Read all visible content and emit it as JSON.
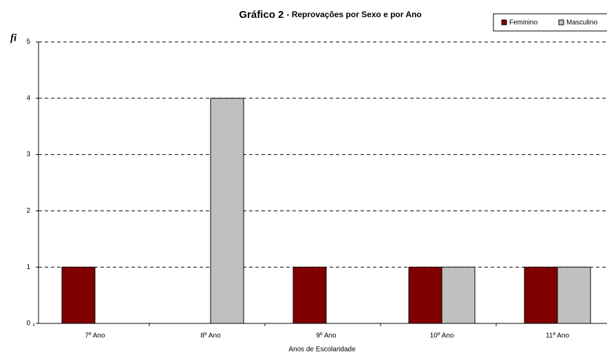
{
  "chart_data": {
    "type": "bar",
    "title": "Gráfico 2",
    "subtitle": "- Reprovações por Sexo e por Ano",
    "y_label": "fi",
    "x_label": "Anos de Escolaridade",
    "categories": [
      "7º Ano",
      "8º Ano",
      "9º Ano",
      "10º Ano",
      "11º Ano"
    ],
    "series": [
      {
        "name": "Feminino",
        "color": "#800000",
        "values": [
          1,
          0,
          1,
          1,
          1
        ]
      },
      {
        "name": "Masculino",
        "color": "#c0c0c0",
        "values": [
          0,
          4,
          0,
          1,
          1
        ]
      }
    ],
    "ylim": [
      0,
      5
    ],
    "yticks": [
      0,
      1,
      2,
      3,
      4,
      5
    ],
    "grid": true,
    "legend": "top-right"
  }
}
